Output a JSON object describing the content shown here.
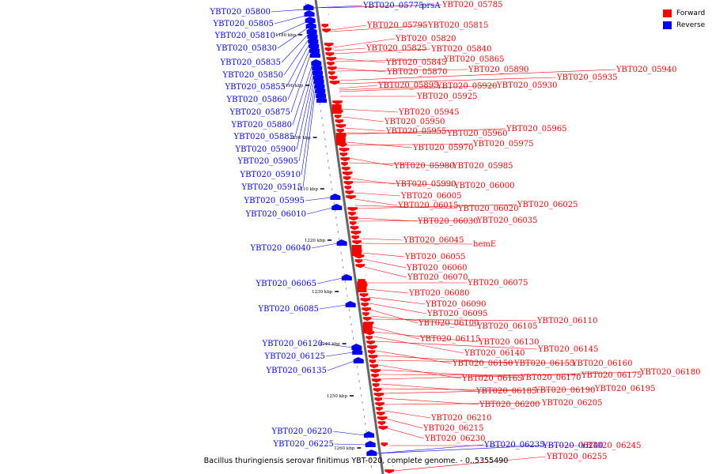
{
  "legend": {
    "forward_label": "Forward",
    "reverse_label": "Reverse",
    "forward_color": "#ff0000",
    "reverse_color": "#0000ff"
  },
  "caption": "Bacillus thuringiensis serovar finitimus YBT-020, complete genome. - 0..5355490",
  "ticks": [
    "1180 kbp",
    "1190 kbp",
    "1200 kbp",
    "1210 kbp",
    "1220 kbp",
    "1230 kbp",
    "1240 kbp",
    "1250 kbp",
    "1260 kbp"
  ],
  "reverse_genes": [
    "YBT020_05800",
    "YBT020_05805",
    "YBT020_05810",
    "YBT020_05830",
    "YBT020_05835",
    "YBT020_05850",
    "YBT020_05855",
    "YBT020_05860",
    "YBT020_05875",
    "YBT020_05880",
    "YBT020_05885",
    "YBT020_05900",
    "YBT020_05905",
    "YBT020_05910",
    "YBT020_05915",
    "YBT020_05995",
    "YBT020_06010",
    "YBT020_06040",
    "YBT020_06065",
    "YBT020_06085",
    "YBT020_06120",
    "YBT020_06125",
    "YBT020_06135",
    "YBT020_06220",
    "YBT020_06225"
  ],
  "reverse_genes_right": [
    "YBT020_05775",
    "prsA",
    "YBT020_06235",
    "YBT020_06240"
  ],
  "forward_genes": [
    "YBT020_05785",
    "YBT020_05795",
    "YBT020_05815",
    "YBT020_05820",
    "YBT020_05825",
    "YBT020_05840",
    "YBT020_05845",
    "YBT020_05865",
    "YBT020_05870",
    "YBT020_05890",
    "YBT020_05940",
    "YBT020_05935",
    "YBT020_05895",
    "YBT020_05920",
    "YBT020_05930",
    "YBT020_05925",
    "YBT020_05945",
    "YBT020_05950",
    "YBT020_05955",
    "YBT020_05960",
    "YBT020_05965",
    "YBT020_05970",
    "YBT020_05975",
    "YBT020_05980",
    "YBT020_05985",
    "YBT020_05990",
    "YBT020_06000",
    "YBT020_06005",
    "YBT020_06015",
    "YBT020_06020",
    "YBT020_06025",
    "YBT020_06030",
    "YBT020_06035",
    "YBT020_06045",
    "hemE",
    "YBT020_06055",
    "YBT020_06060",
    "YBT020_06070",
    "YBT020_06075",
    "YBT020_06080",
    "YBT020_06090",
    "YBT020_06095",
    "YBT020_06100",
    "YBT020_06105",
    "YBT020_06110",
    "YBT020_06115",
    "YBT020_06130",
    "YBT020_06140",
    "YBT020_06145",
    "YBT020_06150",
    "YBT020_06155",
    "YBT020_06160",
    "YBT020_06165",
    "YBT020_06170",
    "YBT020_06175",
    "YBT020_06180",
    "YBT020_06185",
    "YBT020_06190",
    "YBT020_06195",
    "YBT020_06200",
    "YBT020_06205",
    "YBT020_06210",
    "YBT020_06215",
    "YBT020_06230",
    "YBT020_06245",
    "YBT020_06255"
  ]
}
